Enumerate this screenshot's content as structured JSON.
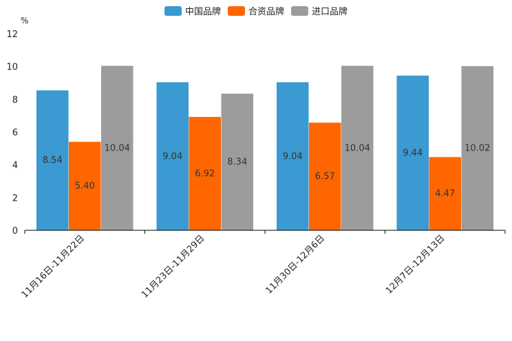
{
  "chart_data": {
    "type": "bar",
    "title": "",
    "xlabel": "",
    "ylabel": "%",
    "ylim": [
      0,
      12
    ],
    "yticks": [
      "0",
      "2",
      "4",
      "6",
      "8",
      "10",
      "12"
    ],
    "grid": false,
    "legend_position": "top-center",
    "categories": [
      "11月16日-11月22日",
      "11月23日-11月29日",
      "11月30日-12月6日",
      "12月7日-12月13日"
    ],
    "series": [
      {
        "name": "中国品牌",
        "color": "#3a9ad1",
        "values": [
          8.54,
          9.04,
          9.04,
          9.44
        ],
        "labels": [
          "8.54",
          "9.04",
          "9.04",
          "9.44"
        ]
      },
      {
        "name": "合资品牌",
        "color": "#ff6600",
        "values": [
          5.4,
          6.92,
          6.57,
          4.47
        ],
        "labels": [
          "5.40",
          "6.92",
          "6.57",
          "4.47"
        ]
      },
      {
        "name": "进口品牌",
        "color": "#9c9c9c",
        "values": [
          10.04,
          8.34,
          10.04,
          10.02
        ],
        "labels": [
          "10.04",
          "8.34",
          "10.04",
          "10.02"
        ]
      }
    ]
  }
}
